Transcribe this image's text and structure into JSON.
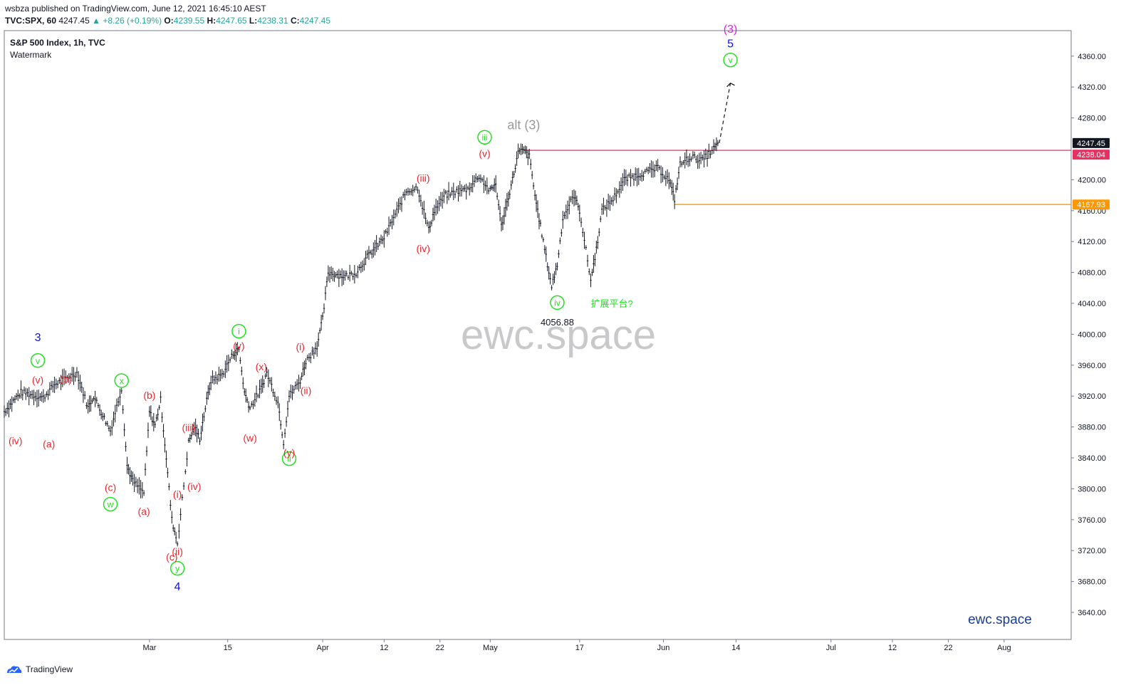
{
  "header": {
    "publisher_line": "wsbza published on TradingView.com, June 12, 2021 16:45:10 AEST",
    "symbol": "TVC:SPX, 60",
    "last": "4247.45",
    "change": "+8.26 (+0.19%)",
    "o_label": "O:",
    "o_value": "4239.55",
    "h_label": "H:",
    "h_value": "4247.65",
    "l_label": "L:",
    "l_value": "4238.31",
    "c_label": "C:",
    "c_value": "4247.45"
  },
  "legend": {
    "title": "S&P 500 Index, 1h, TVC",
    "subtitle": "Watermark"
  },
  "watermark": "ewc.space",
  "brand_text": "ewc.space",
  "footer": {
    "logo_text": "TradingView"
  },
  "colors": {
    "candle": "#131722",
    "wave_red": "#f0242c",
    "wave_green": "#22e022",
    "wave_blue": "#1010dd",
    "wave_magenta": "#e21ce0",
    "alt_grey": "#999999",
    "resistance": "#e53262",
    "support": "#ff9800",
    "price_bg": "#131722",
    "axis_border": "#787b86"
  },
  "chart_data": {
    "type": "line",
    "title": "S&P 500 Index, 1h, TVC",
    "timeframe": "1h",
    "x_range": [
      "2021-02-03",
      "2021-08-13"
    ],
    "ylim": [
      3605,
      4393
    ],
    "x_ticks": [
      "Mar",
      "15",
      "Apr",
      "12",
      "22",
      "May",
      "17",
      "Jun",
      "14",
      "Jul",
      "12",
      "22",
      "Aug"
    ],
    "y_ticks": [
      "4360.00",
      "4320.00",
      "4280.00",
      "4200.00",
      "4160.00",
      "4120.00",
      "4080.00",
      "4040.00",
      "4000.00",
      "3960.00",
      "3920.00",
      "3880.00",
      "3840.00",
      "3800.00",
      "3760.00",
      "3720.00",
      "3680.00",
      "3640.00"
    ],
    "series": [
      {
        "values": [
          [
            "2021-02-03",
            3900
          ],
          [
            "2021-02-06",
            3925
          ],
          [
            "2021-02-10",
            3918
          ],
          [
            "2021-02-12",
            3935
          ],
          [
            "2021-02-16",
            3950
          ],
          [
            "2021-02-18",
            3905
          ],
          [
            "2021-02-19",
            3920
          ],
          [
            "2021-02-22",
            3875
          ],
          [
            "2021-02-24",
            3930
          ],
          [
            "2021-02-25",
            3830
          ],
          [
            "2021-02-26",
            3810
          ],
          [
            "2021-02-28",
            3795
          ],
          [
            "2021-03-01",
            3900
          ],
          [
            "2021-03-02",
            3882
          ],
          [
            "2021-03-03",
            3915
          ],
          [
            "2021-03-04",
            3840
          ],
          [
            "2021-03-05",
            3760
          ],
          [
            "2021-03-06",
            3730
          ],
          [
            "2021-03-08",
            3860
          ],
          [
            "2021-03-09",
            3880
          ],
          [
            "2021-03-10",
            3865
          ],
          [
            "2021-03-11",
            3905
          ],
          [
            "2021-03-12",
            3940
          ],
          [
            "2021-03-14",
            3948
          ],
          [
            "2021-03-16",
            3975
          ],
          [
            "2021-03-17",
            3980
          ],
          [
            "2021-03-18",
            3925
          ],
          [
            "2021-03-19",
            3905
          ],
          [
            "2021-03-21",
            3930
          ],
          [
            "2021-03-22",
            3950
          ],
          [
            "2021-03-24",
            3912
          ],
          [
            "2021-03-25",
            3860
          ],
          [
            "2021-03-26",
            3920
          ],
          [
            "2021-03-28",
            3940
          ],
          [
            "2021-03-29",
            3965
          ],
          [
            "2021-03-31",
            3985
          ],
          [
            "2021-04-01",
            4020
          ],
          [
            "2021-04-02",
            4080
          ],
          [
            "2021-04-05",
            4075
          ],
          [
            "2021-04-07",
            4080
          ],
          [
            "2021-04-09",
            4100
          ],
          [
            "2021-04-12",
            4125
          ],
          [
            "2021-04-14",
            4155
          ],
          [
            "2021-04-16",
            4185
          ],
          [
            "2021-04-18",
            4190
          ],
          [
            "2021-04-20",
            4135
          ],
          [
            "2021-04-21",
            4160
          ],
          [
            "2021-04-23",
            4180
          ],
          [
            "2021-04-25",
            4185
          ],
          [
            "2021-04-27",
            4188
          ],
          [
            "2021-04-29",
            4205
          ],
          [
            "2021-05-01",
            4185
          ],
          [
            "2021-05-02",
            4195
          ],
          [
            "2021-05-03",
            4140
          ],
          [
            "2021-05-04",
            4170
          ],
          [
            "2021-05-05",
            4200
          ],
          [
            "2021-05-06",
            4235
          ],
          [
            "2021-05-07",
            4238
          ],
          [
            "2021-05-08",
            4230
          ],
          [
            "2021-05-09",
            4180
          ],
          [
            "2021-05-10",
            4140
          ],
          [
            "2021-05-11",
            4100
          ],
          [
            "2021-05-12",
            4062
          ],
          [
            "2021-05-13",
            4090
          ],
          [
            "2021-05-14",
            4150
          ],
          [
            "2021-05-16",
            4180
          ],
          [
            "2021-05-17",
            4160
          ],
          [
            "2021-05-19",
            4070
          ],
          [
            "2021-05-20",
            4110
          ],
          [
            "2021-05-21",
            4160
          ],
          [
            "2021-05-23",
            4175
          ],
          [
            "2021-05-25",
            4200
          ],
          [
            "2021-05-27",
            4205
          ],
          [
            "2021-05-29",
            4210
          ],
          [
            "2021-05-31",
            4215
          ],
          [
            "2021-06-02",
            4200
          ],
          [
            "2021-06-03",
            4175
          ],
          [
            "2021-06-04",
            4220
          ],
          [
            "2021-06-06",
            4230
          ],
          [
            "2021-06-08",
            4225
          ],
          [
            "2021-06-10",
            4240
          ],
          [
            "2021-06-11",
            4247.45
          ]
        ]
      }
    ],
    "levels": [
      {
        "label": "4238.04",
        "value": 4238.04,
        "color": "#e53262"
      },
      {
        "label": "4167.93",
        "value": 4167.93,
        "color": "#ff9800"
      }
    ],
    "last_price_label": "4247.45",
    "projection": [
      [
        "2021-06-11",
        4247.45
      ],
      [
        "2021-06-13",
        4325
      ]
    ],
    "annotations": [
      {
        "text": "4056.88",
        "x": "2021-05-13",
        "y": 4016,
        "style": "dark"
      },
      {
        "text": "alt (3)",
        "x": "2021-05-07",
        "y": 4270,
        "style": "grey"
      },
      {
        "text": "扩展平台?",
        "x": "2021-05-19",
        "y": 4040,
        "style": "green_text"
      },
      {
        "text": "3",
        "x": "2021-02-09",
        "y": 3996,
        "style": "blue"
      },
      {
        "text": "4",
        "x": "2021-03-06",
        "y": 3673,
        "style": "blue"
      },
      {
        "text": "5",
        "x": "2021-06-13",
        "y": 4376,
        "style": "blue"
      },
      {
        "text": "(3)",
        "x": "2021-06-13",
        "y": 4395,
        "style": "magenta"
      },
      {
        "text": "v",
        "x": "2021-02-09",
        "y": 3966,
        "style": "green_circle"
      },
      {
        "text": "x",
        "x": "2021-02-24",
        "y": 3940,
        "style": "green_circle"
      },
      {
        "text": "w",
        "x": "2021-02-22",
        "y": 3780,
        "style": "green_circle"
      },
      {
        "text": "y",
        "x": "2021-03-06",
        "y": 3697,
        "style": "green_circle"
      },
      {
        "text": "i",
        "x": "2021-03-17",
        "y": 4004,
        "style": "green_circle"
      },
      {
        "text": "ii",
        "x": "2021-03-26",
        "y": 3839,
        "style": "green_circle"
      },
      {
        "text": "iii",
        "x": "2021-04-30",
        "y": 4255,
        "style": "green_circle"
      },
      {
        "text": "iv",
        "x": "2021-05-13",
        "y": 4041,
        "style": "green_circle"
      },
      {
        "text": "v",
        "x": "2021-06-13",
        "y": 4355,
        "style": "green_circle"
      },
      {
        "text": "(v)",
        "x": "2021-02-09",
        "y": 3941,
        "style": "red"
      },
      {
        "text": "(b)",
        "x": "2021-02-14",
        "y": 3942,
        "style": "red"
      },
      {
        "text": "(iv)",
        "x": "2021-02-05",
        "y": 3862,
        "style": "red"
      },
      {
        "text": "(a)",
        "x": "2021-02-11",
        "y": 3858,
        "style": "red"
      },
      {
        "text": "(c)",
        "x": "2021-02-22",
        "y": 3802,
        "style": "red"
      },
      {
        "text": "(b)",
        "x": "2021-03-01",
        "y": 3921,
        "style": "red"
      },
      {
        "text": "(a)",
        "x": "2021-02-28",
        "y": 3771,
        "style": "red"
      },
      {
        "text": "(iii)",
        "x": "2021-03-08",
        "y": 3879,
        "style": "red"
      },
      {
        "text": "(iv)",
        "x": "2021-03-09",
        "y": 3803,
        "style": "red"
      },
      {
        "text": "(i)",
        "x": "2021-03-06",
        "y": 3793,
        "style": "red"
      },
      {
        "text": "(ii)",
        "x": "2021-03-06",
        "y": 3719,
        "style": "red"
      },
      {
        "text": "(c)",
        "x": "2021-03-05",
        "y": 3712,
        "style": "red"
      },
      {
        "text": "(v)",
        "x": "2021-03-17",
        "y": 3985,
        "style": "red"
      },
      {
        "text": "(x)",
        "x": "2021-03-21",
        "y": 3958,
        "style": "red"
      },
      {
        "text": "(w)",
        "x": "2021-03-19",
        "y": 3866,
        "style": "red"
      },
      {
        "text": "(y)",
        "x": "2021-03-26",
        "y": 3847,
        "style": "red"
      },
      {
        "text": "(i)",
        "x": "2021-03-28",
        "y": 3984,
        "style": "red"
      },
      {
        "text": "(ii)",
        "x": "2021-03-29",
        "y": 3927,
        "style": "red"
      },
      {
        "text": "(iii)",
        "x": "2021-04-19",
        "y": 4202,
        "style": "red"
      },
      {
        "text": "(iv)",
        "x": "2021-04-19",
        "y": 4111,
        "style": "red"
      },
      {
        "text": "(v)",
        "x": "2021-04-30",
        "y": 4234,
        "style": "red"
      }
    ]
  }
}
